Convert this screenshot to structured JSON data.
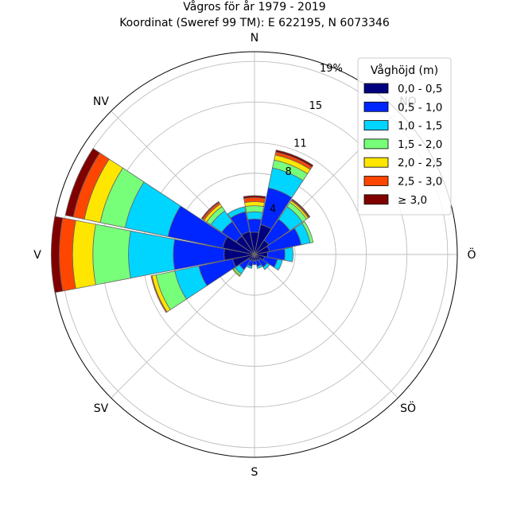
{
  "chart_data": {
    "type": "windrose",
    "title": "Vågros för år 1979 - 2019",
    "subtitle": "Koordinat (Sweref 99 TM): E 622195, N 6073346",
    "directions": [
      "N",
      "NO",
      "Ö",
      "SÖ",
      "S",
      "SV",
      "V",
      "NV"
    ],
    "direction_label_values": [
      "N",
      "Ö",
      "SÖ",
      "S",
      "SV",
      "V",
      "NV"
    ],
    "radial_ticks": [
      {
        "value": 4,
        "label": "4"
      },
      {
        "value": 8,
        "label": "8"
      },
      {
        "value": 11,
        "label": "11"
      },
      {
        "value": 15,
        "label": "15"
      },
      {
        "value": 19,
        "label": "19%"
      }
    ],
    "rmax": 19.95,
    "grid": true,
    "legend_title": "Våghöjd (m)",
    "legend_placement": "top-right",
    "bins": [
      {
        "label": "0,0 - 0,5",
        "color": "#00007f"
      },
      {
        "label": "0,5 - 1,0",
        "color": "#0026ff"
      },
      {
        "label": "1,0 - 1,5",
        "color": "#00d5ff"
      },
      {
        "label": "1,5 - 2,0",
        "color": "#78ff7a"
      },
      {
        "label": "2,0 - 2,5",
        "color": "#ffe600"
      },
      {
        "label": "2,5 - 3,0",
        "color": "#ff4600"
      },
      {
        "label": "≥ 3,0",
        "color": "#800000"
      }
    ],
    "sectors": [
      {
        "direction": 0,
        "values": [
          2.2,
          1.3,
          0.7,
          0.6,
          0.4,
          0.4,
          0.2
        ]
      },
      {
        "direction": 22.5,
        "values": [
          3.0,
          3.7,
          2.0,
          0.8,
          0.5,
          0.3,
          0.2
        ]
      },
      {
        "direction": 45,
        "values": [
          1.7,
          2.5,
          1.5,
          0.5,
          0.2,
          0.1,
          0.1
        ]
      },
      {
        "direction": 67.5,
        "values": [
          1.5,
          3.2,
          0.9,
          0.3
        ]
      },
      {
        "direction": 90,
        "values": [
          1.3,
          1.7,
          0.8
        ]
      },
      {
        "direction": 112.5,
        "values": [
          1.0,
          1.3,
          0.5
        ]
      },
      {
        "direction": 135,
        "values": [
          0.7,
          0.8,
          0.3
        ]
      },
      {
        "direction": 157.5,
        "values": [
          0.6,
          0.6,
          0.2
        ]
      },
      {
        "direction": 180,
        "values": [
          0.6,
          0.4
        ]
      },
      {
        "direction": 202.5,
        "values": [
          0.6,
          0.6,
          0.2
        ]
      },
      {
        "direction": 225,
        "values": [
          0.7,
          1.1,
          0.5,
          0.2,
          0.1
        ]
      },
      {
        "direction": 247.5,
        "values": [
          2.2,
          3.4,
          2.4,
          1.9,
          0.4,
          0.1
        ]
      },
      {
        "direction": 270,
        "values": [
          3.0,
          5.0,
          4.4,
          3.5,
          2.0,
          1.3,
          0.8
        ]
      },
      {
        "direction": 292.5,
        "values": [
          3.2,
          5.5,
          4.3,
          2.5,
          1.6,
          1.1,
          0.8
        ]
      },
      {
        "direction": 315,
        "values": [
          2.2,
          1.7,
          1.3,
          0.5,
          0.3,
          0.2,
          0.1
        ]
      },
      {
        "direction": 337.5,
        "values": [
          2.3,
          2.0,
          0.5
        ]
      }
    ]
  }
}
